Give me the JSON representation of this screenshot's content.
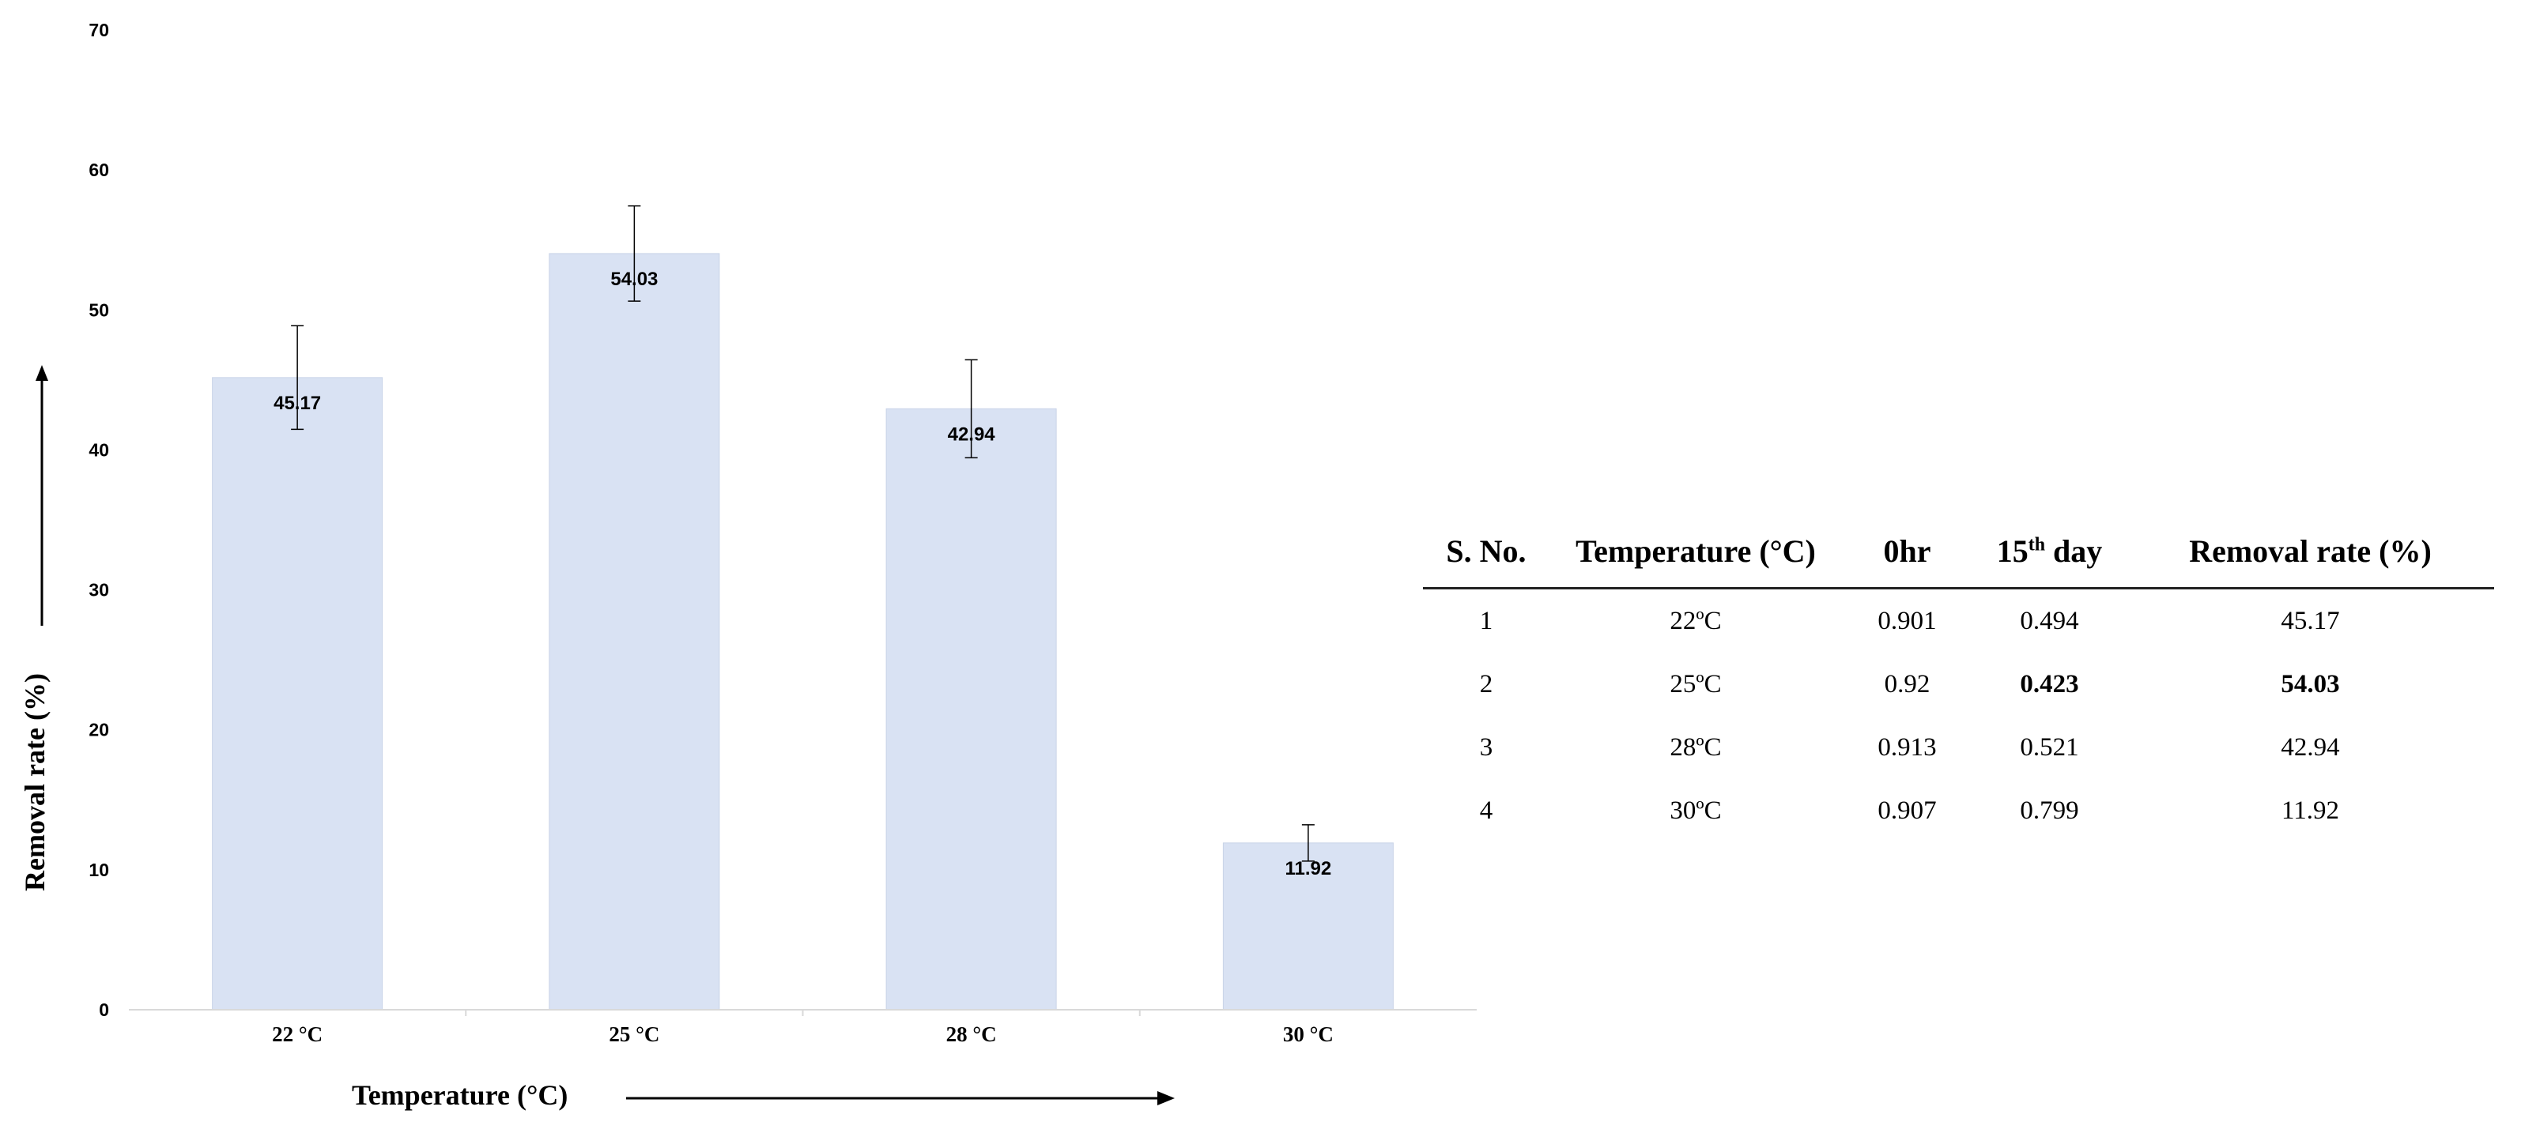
{
  "chart_data": {
    "type": "bar",
    "categories": [
      "22 °C",
      "25 °C",
      "28 °C",
      "30 °C"
    ],
    "values": [
      45.17,
      54.03,
      42.94,
      11.92
    ],
    "errors": [
      3.7,
      3.4,
      3.5,
      1.3
    ],
    "data_labels": [
      "45.17",
      "54.03",
      "42.94",
      "11.92"
    ],
    "y_ticks": [
      "0",
      "10",
      "20",
      "30",
      "40",
      "50",
      "60",
      "70"
    ],
    "ylim": [
      0,
      70
    ],
    "xlabel": "Temperature  (°C)",
    "ylabel": "Removal rate (%)",
    "bar_color": "#d9e2f3",
    "grid": false
  },
  "table": {
    "headers": {
      "sno": "S. No.",
      "temperature": "Temperature (°C)",
      "zero_hr": "0hr",
      "day_num": "15",
      "day_sup": "th",
      "day_word": " day",
      "removal": "Removal rate (%)"
    },
    "rows": [
      {
        "sno": "1",
        "temp": "22ºC",
        "zero": "0.901",
        "day15": "0.494",
        "removal": "45.17"
      },
      {
        "sno": "2",
        "temp": "25ºC",
        "zero": "0.92",
        "day15": "0.423",
        "removal": "54.03"
      },
      {
        "sno": "3",
        "temp": "28ºC",
        "zero": "0.913",
        "day15": "0.521",
        "removal": "42.94"
      },
      {
        "sno": "4",
        "temp": "30ºC",
        "zero": "0.907",
        "day15": "0.799",
        "removal": "11.92"
      }
    ]
  }
}
